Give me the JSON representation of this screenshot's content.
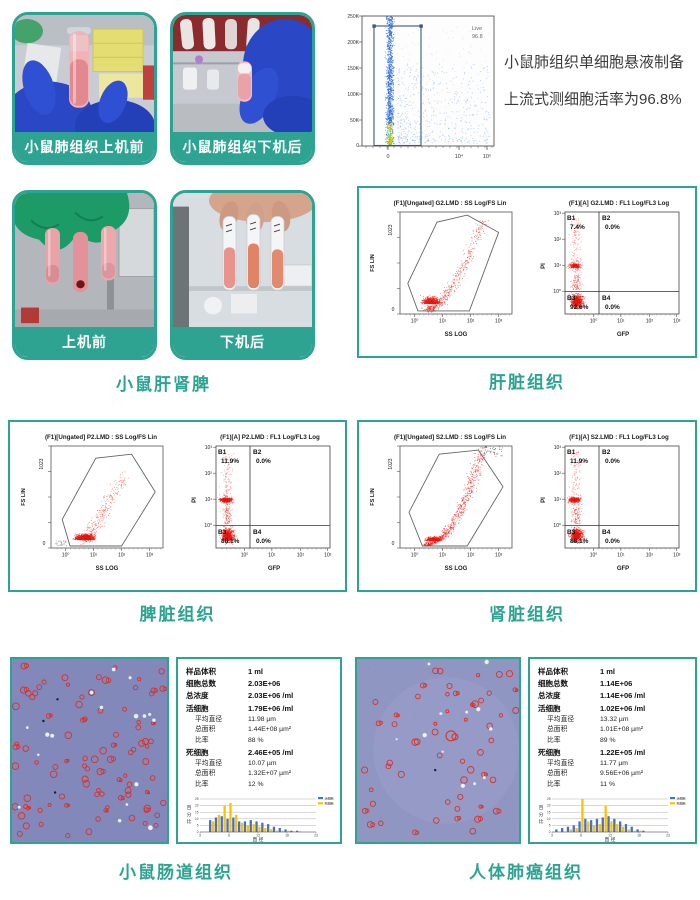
{
  "accent": "#2ea391",
  "row1": {
    "photo_cards": [
      {
        "label": "小鼠肺组织上机前"
      },
      {
        "label": "小鼠肺组织下机后"
      }
    ],
    "live_plot": {
      "gate_name": "Live",
      "gate_value": "96.8",
      "y_ticks": [
        "250K",
        "200K",
        "150K",
        "100K",
        "50K",
        "0"
      ],
      "x_ticks": [
        "0",
        "10⁴",
        "10⁵"
      ]
    },
    "description": {
      "line1": "小鼠肺组织单细胞悬液制备",
      "line2": "上流式测细胞活率为96.8%"
    }
  },
  "row2": {
    "photo_cards": [
      {
        "label": "上机前"
      },
      {
        "label": "下机后"
      }
    ],
    "photos_caption": "小鼠肝肾脾"
  },
  "flow_panels": [
    {
      "caption": "肝脏组织",
      "fs_plot": {
        "title": "(F1)[Ungated] G2.LMD : SS Log/FS Lin",
        "y_label": "FS LIN",
        "y_max": "1023",
        "y_min": "0",
        "x_label": "SS LOG",
        "x_ticks": [
          "10⁰",
          "10¹",
          "10²",
          "10³"
        ],
        "profile": "comet"
      },
      "quad_plot": {
        "title": "(F1)[A] G2.LMD : FL1 Log/FL3 Log",
        "y_label": "PI",
        "x_label": "GFP",
        "y_ticks": [
          "10³",
          "10²",
          "10¹",
          "10⁰"
        ],
        "x_ticks": [
          "10⁰",
          "10¹",
          "10²",
          "10³"
        ],
        "band_density": 0.55,
        "quadrants": [
          {
            "name": "B1",
            "value": "7.4%"
          },
          {
            "name": "B2",
            "value": "0.0%"
          },
          {
            "name": "B3",
            "value": "92.6%"
          },
          {
            "name": "B4",
            "value": "0.0%"
          }
        ]
      }
    },
    {
      "caption": "脾脏组织",
      "fs_plot": {
        "title": "(F1)[Ungated] P2.LMD : SS Log/FS Lin",
        "y_label": "FS LIN",
        "y_max": "1023",
        "y_min": "0",
        "x_label": "SS LOG",
        "x_ticks": [
          "10⁰",
          "10¹",
          "10²",
          "10³"
        ],
        "profile": "blob"
      },
      "quad_plot": {
        "title": "(F1)[A] P2.LMD : FL1 Log/FL3 Log",
        "y_label": "PI",
        "x_label": "GFP",
        "y_ticks": [
          "10³",
          "10²",
          "10¹",
          "10⁰"
        ],
        "x_ticks": [
          "10⁰",
          "10¹",
          "10²",
          "10³"
        ],
        "band_density": 0.9,
        "quadrants": [
          {
            "name": "B1",
            "value": "11.9%"
          },
          {
            "name": "B2",
            "value": "0.0%"
          },
          {
            "name": "B3",
            "value": "88.1%"
          },
          {
            "name": "B4",
            "value": "0.0%"
          }
        ]
      }
    },
    {
      "caption": "肾脏组织",
      "fs_plot": {
        "title": "(F1)[Ungated] S2.LMD : SS Log/FS Lin",
        "y_label": "FS LIN",
        "y_max": "1023",
        "y_min": "0",
        "x_label": "SS LOG",
        "x_ticks": [
          "10⁰",
          "10¹",
          "10²",
          "10³"
        ],
        "profile": "arc"
      },
      "quad_plot": {
        "title": "(F1)[A] S2.LMD : FL1 Log/FL3 Log",
        "y_label": "PI",
        "x_label": "GFP",
        "y_ticks": [
          "10³",
          "10²",
          "10¹",
          "10⁰"
        ],
        "x_ticks": [
          "10⁰",
          "10¹",
          "10²",
          "10³"
        ],
        "band_density": 0.9,
        "quadrants": [
          {
            "name": "B1",
            "value": "11.9%"
          },
          {
            "name": "B2",
            "value": "0.0%"
          },
          {
            "name": "B3",
            "value": "88.1%"
          },
          {
            "name": "B4",
            "value": "0.0%"
          }
        ]
      }
    }
  ],
  "count_panels": [
    {
      "caption": "小鼠肠道组织",
      "stats": [
        {
          "label": "样品体积",
          "value": "1 ml",
          "indent": false
        },
        {
          "label": "细胞总数",
          "value": "2.03E+06",
          "indent": false
        },
        {
          "label": "总浓度",
          "value": "2.03E+06 /ml",
          "indent": false
        },
        {
          "label": "活细胞",
          "value": "1.79E+06 /ml",
          "indent": false
        },
        {
          "label": "平均直径",
          "value": "11.98 µm",
          "indent": true
        },
        {
          "label": "总面积",
          "value": "1.44E+08 µm²",
          "indent": true
        },
        {
          "label": "比率",
          "value": "88 %",
          "indent": true
        },
        {
          "label": "死细胞",
          "value": "2.46E+05 /ml",
          "indent": false
        },
        {
          "label": "平均直径",
          "value": "10.07 µm",
          "indent": true
        },
        {
          "label": "总面积",
          "value": "1.32E+07 µm²",
          "indent": true
        },
        {
          "label": "比率",
          "value": "12 %",
          "indent": true
        }
      ],
      "histogram": {
        "y_label": "百分比",
        "x_label": "直 径"
      }
    },
    {
      "caption": "人体肺癌组织",
      "stats": [
        {
          "label": "样品体积",
          "value": "1 ml",
          "indent": false
        },
        {
          "label": "细胞总数",
          "value": "1.14E+06",
          "indent": false
        },
        {
          "label": "总浓度",
          "value": "1.14E+06 /ml",
          "indent": false
        },
        {
          "label": "活细胞",
          "value": "1.02E+06 /ml",
          "indent": false
        },
        {
          "label": "平均直径",
          "value": "13.32 µm",
          "indent": true
        },
        {
          "label": "总面积",
          "value": "1.01E+08 µm²",
          "indent": true
        },
        {
          "label": "比率",
          "value": "89 %",
          "indent": true
        },
        {
          "label": "死细胞",
          "value": "1.22E+05 /ml",
          "indent": false
        },
        {
          "label": "平均直径",
          "value": "11.77 µm",
          "indent": true
        },
        {
          "label": "总面积",
          "value": "9.56E+06 µm²",
          "indent": true
        },
        {
          "label": "比率",
          "value": "11 %",
          "indent": true
        }
      ],
      "histogram": {
        "y_label": "百分比",
        "x_label": "直 径"
      }
    }
  ],
  "chart_data": [
    {
      "type": "scatter",
      "id": "lung-viability-gate",
      "title": "",
      "gate": "Live",
      "gate_percent": 96.8,
      "x_ticks": [
        "0",
        "10⁴",
        "10⁵"
      ],
      "y_ticks": [
        "250K",
        "200K",
        "150K",
        "100K",
        "50K",
        "0"
      ]
    },
    {
      "type": "scatter",
      "id": "liver-flow",
      "fs_title": "(F1)[Ungated] G2.LMD : SS Log/FS Lin",
      "quad_title": "(F1)[A] G2.LMD : FL1 Log/FL3 Log",
      "quadrant_percentages": {
        "B1": 7.4,
        "B2": 0.0,
        "B3": 92.6,
        "B4": 0.0
      }
    },
    {
      "type": "scatter",
      "id": "spleen-flow",
      "fs_title": "(F1)[Ungated] P2.LMD : SS Log/FS Lin",
      "quad_title": "(F1)[A] P2.LMD : FL1 Log/FL3 Log",
      "quadrant_percentages": {
        "B1": 11.9,
        "B2": 0.0,
        "B3": 88.1,
        "B4": 0.0
      }
    },
    {
      "type": "scatter",
      "id": "kidney-flow",
      "fs_title": "(F1)[Ungated] S2.LMD : SS Log/FS Lin",
      "quad_title": "(F1)[A] S2.LMD : FL1 Log/FL3 Log",
      "quadrant_percentages": {
        "B1": 11.9,
        "B2": 0.0,
        "B3": 88.1,
        "B4": 0.0
      }
    },
    {
      "type": "bar",
      "id": "mouse-intestine-size-distribution",
      "xlabel": "直径",
      "ylabel": "百分比",
      "ylim": [
        0,
        25
      ],
      "x_ticks": [
        3,
        8,
        13,
        18,
        23
      ],
      "y_ticks": [
        0,
        5,
        10,
        15,
        20,
        25
      ],
      "categories": [
        5,
        6,
        7,
        8,
        9,
        10,
        11,
        12,
        13,
        14,
        15,
        16,
        17,
        18,
        19,
        20
      ],
      "series": [
        {
          "name": "活细胞",
          "color": "#4472c4",
          "values": [
            9,
            11,
            12,
            10,
            11,
            8,
            8,
            9,
            8,
            7,
            6,
            4,
            3,
            2,
            1,
            1
          ]
        },
        {
          "name": "死细胞",
          "color": "#ffc000",
          "values": [
            8,
            13,
            20,
            22,
            13,
            7,
            5,
            6,
            4,
            3,
            2,
            1,
            1,
            1,
            0.5,
            0.5
          ]
        }
      ]
    },
    {
      "type": "bar",
      "id": "human-lung-cancer-size-distribution",
      "xlabel": "直径",
      "ylabel": "百分比",
      "ylim": [
        0,
        25
      ],
      "x_ticks": [
        3,
        8,
        13,
        18,
        23
      ],
      "y_ticks": [
        0,
        5,
        10,
        15,
        20,
        25
      ],
      "categories": [
        4,
        5,
        6,
        7,
        8,
        9,
        10,
        11,
        12,
        13,
        14,
        15,
        16,
        17,
        18,
        19
      ],
      "series": [
        {
          "name": "活细胞",
          "color": "#4472c4",
          "values": [
            2,
            3,
            4,
            5,
            8,
            10,
            9,
            10,
            11,
            12,
            10,
            8,
            6,
            4,
            2,
            1
          ]
        },
        {
          "name": "死细胞",
          "color": "#ffc000",
          "values": [
            0,
            0,
            2,
            3,
            25,
            8,
            5,
            6,
            20,
            8,
            6,
            4,
            2,
            1,
            1,
            0
          ]
        }
      ]
    }
  ]
}
